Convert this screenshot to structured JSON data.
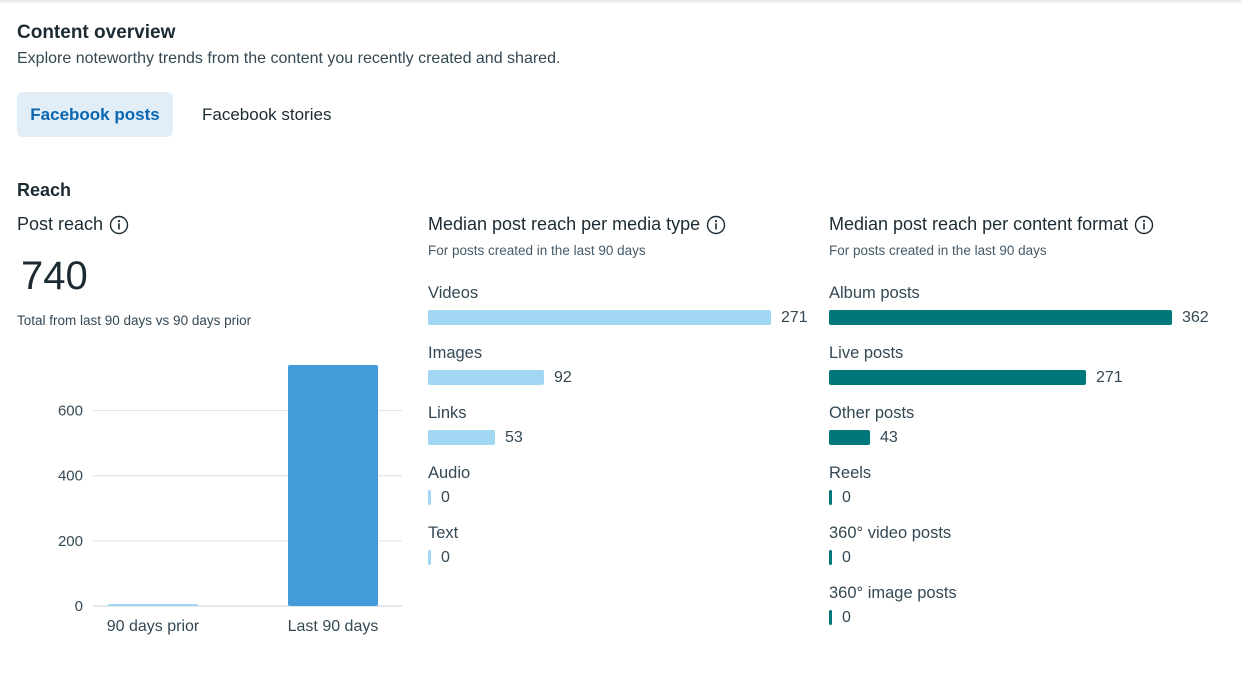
{
  "header": {
    "title": "Content overview",
    "subtitle": "Explore noteworthy trends from the content you recently created and shared."
  },
  "tabs": [
    {
      "label": "Facebook posts",
      "active": true
    },
    {
      "label": "Facebook stories",
      "active": false
    }
  ],
  "reach": {
    "section_title": "Reach",
    "post_reach": {
      "title": "Post reach",
      "value": "740",
      "note": "Total from last 90 days vs 90 days prior"
    },
    "media_type": {
      "title": "Median post reach per media type",
      "subtitle": "For posts created in the last 90 days",
      "max": 271,
      "items": [
        {
          "label": "Videos",
          "value": 271,
          "display": "271"
        },
        {
          "label": "Images",
          "value": 92,
          "display": "92"
        },
        {
          "label": "Links",
          "value": 53,
          "display": "53"
        },
        {
          "label": "Audio",
          "value": 0,
          "display": "0"
        },
        {
          "label": "Text",
          "value": 0,
          "display": "0"
        }
      ]
    },
    "content_format": {
      "title": "Median post reach per content format",
      "subtitle": "For posts created in the last 90 days",
      "max": 362,
      "items": [
        {
          "label": "Album posts",
          "value": 362,
          "display": "362"
        },
        {
          "label": "Live posts",
          "value": 271,
          "display": "271"
        },
        {
          "label": "Other posts",
          "value": 43,
          "display": "43"
        },
        {
          "label": "Reels",
          "value": 0,
          "display": "0"
        },
        {
          "label": "360° video posts",
          "value": 0,
          "display": "0"
        },
        {
          "label": "360° image posts",
          "value": 0,
          "display": "0"
        }
      ]
    }
  },
  "colors": {
    "reach_bar": "#439cd9",
    "prior_bar": "#a2d7f4",
    "media_bar": "#a2d7f4",
    "format_bar": "#00787a",
    "grid": "#dde2e6",
    "axis_text": "#344854"
  },
  "chart_data": {
    "type": "bar",
    "title": "Post reach",
    "categories": [
      "90 days prior",
      "Last 90 days"
    ],
    "values": [
      6,
      740
    ],
    "ylim": [
      0,
      740
    ],
    "yticks": [
      0,
      200,
      400,
      600
    ],
    "ytick_labels": [
      "0",
      "200",
      "400",
      "600"
    ],
    "grid": true,
    "xlabel": "",
    "ylabel": ""
  }
}
